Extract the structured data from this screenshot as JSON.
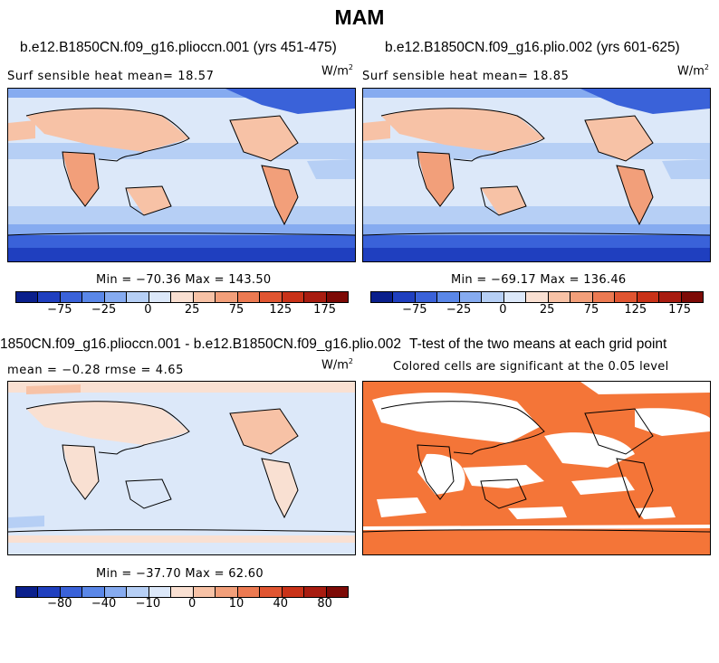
{
  "figure": {
    "title": "MAM"
  },
  "panels": [
    {
      "title": "b.e12.B1850CN.f09_g16.plioccn.001 (yrs 451-475)",
      "subtitle": "Surf sensible heat   mean=  18.57",
      "unit_base": "W/m",
      "unit_exp": "2",
      "stats": "Min = −70.36 Max = 143.50"
    },
    {
      "title": "b.e12.B1850CN.f09_g16.plio.002 (yrs 601-625)",
      "subtitle": "Surf sensible heat   mean=  18.85",
      "unit_base": "W/m",
      "unit_exp": "2",
      "stats": "Min = −69.17 Max = 136.46"
    },
    {
      "title": "1850CN.f09_g16.plioccn.001 - b.e12.B1850CN.f09_g16.plio.002",
      "subtitle": "mean =  −0.28    rmse =   4.65",
      "unit_base": "W/m",
      "unit_exp": "2",
      "stats": "Min = −37.70 Max = 62.60"
    },
    {
      "title": "T-test of the two means at each grid point",
      "subtitle": "Colored cells are significant at the 0.05 level"
    }
  ],
  "colorbars": [
    {
      "colors": [
        "#0a1f8c",
        "#1f3fbf",
        "#3a62d9",
        "#5a87e8",
        "#86abf0",
        "#b6cff5",
        "#dce8f9",
        "#f9e0d2",
        "#f7c2a6",
        "#f29f7a",
        "#ec7a52",
        "#e05531",
        "#c93218",
        "#a81c10",
        "#7d0a06"
      ],
      "ticks": [
        "−75",
        "−25",
        "0",
        "25",
        "75",
        "125",
        "175"
      ]
    },
    {
      "colors": [
        "#0a1f8c",
        "#1f3fbf",
        "#3a62d9",
        "#5a87e8",
        "#86abf0",
        "#b6cff5",
        "#dce8f9",
        "#f9e0d2",
        "#f7c2a6",
        "#f29f7a",
        "#ec7a52",
        "#e05531",
        "#c93218",
        "#a81c10",
        "#7d0a06"
      ],
      "ticks": [
        "−75",
        "−25",
        "0",
        "25",
        "75",
        "125",
        "175"
      ]
    },
    {
      "colors": [
        "#0a1f8c",
        "#1f3fbf",
        "#3a62d9",
        "#5a87e8",
        "#86abf0",
        "#b6cff5",
        "#dce8f9",
        "#f9e0d2",
        "#f7c2a6",
        "#f29f7a",
        "#ec7a52",
        "#e05531",
        "#c93218",
        "#a81c10",
        "#7d0a06"
      ],
      "ticks": [
        "−80",
        "−40",
        "−10",
        "0",
        "10",
        "40",
        "80"
      ]
    }
  ],
  "colors": {
    "ocean_field": "#cfe0f5",
    "land_warm": "#f2a98a",
    "cold_polar": "#3a62d9",
    "significant": "#f47538"
  }
}
